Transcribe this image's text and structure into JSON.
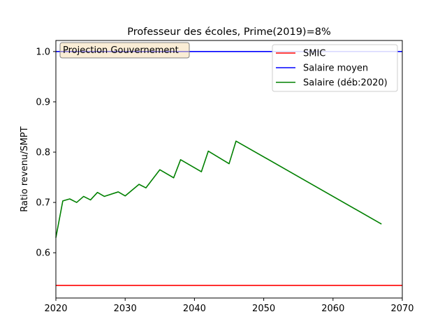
{
  "chart_data": {
    "type": "line",
    "title": "Professeur des écoles, Prime(2019)=8%",
    "xlabel": "",
    "ylabel": "Ratio revenu/SMPT",
    "xlim": [
      2020,
      2070
    ],
    "ylim": [
      0.51,
      1.022
    ],
    "xticks": [
      2020,
      2030,
      2040,
      2050,
      2060,
      2070
    ],
    "yticks": [
      0.6,
      0.7,
      0.8,
      0.9,
      1.0
    ],
    "xtick_labels": [
      "2020",
      "2030",
      "2040",
      "2050",
      "2060",
      "2070"
    ],
    "ytick_labels": [
      "0.6",
      "0.7",
      "0.8",
      "0.9",
      "1.0"
    ],
    "grid": false,
    "legend_position": "top-right",
    "annotation": "Projection Gouvernement",
    "series": [
      {
        "name": "SMIC",
        "color": "#ff0000",
        "x": [
          2020,
          2070
        ],
        "y": [
          0.535,
          0.535
        ]
      },
      {
        "name": "Salaire moyen",
        "color": "#0000ff",
        "x": [
          2020,
          2070
        ],
        "y": [
          1.0,
          1.0
        ]
      },
      {
        "name": "Salaire (déb:2020)",
        "color": "#008000",
        "x": [
          2020,
          2021,
          2022,
          2023,
          2024,
          2025,
          2026,
          2027,
          2029,
          2030,
          2032,
          2033,
          2035,
          2037,
          2038,
          2041,
          2042,
          2045,
          2046,
          2067
        ],
        "y": [
          0.63,
          0.703,
          0.707,
          0.7,
          0.712,
          0.705,
          0.72,
          0.712,
          0.721,
          0.713,
          0.736,
          0.729,
          0.765,
          0.749,
          0.785,
          0.761,
          0.802,
          0.777,
          0.822,
          0.657
        ]
      }
    ]
  }
}
